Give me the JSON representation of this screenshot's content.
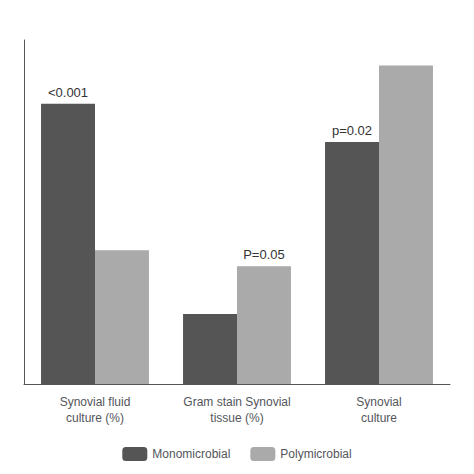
{
  "chart_data": {
    "type": "bar",
    "categories": [
      "Synovial fluid\nculture (%)",
      "Gram stain Synovial\ntissue (%)",
      "Synovial\nculture"
    ],
    "series": [
      {
        "name": "Monomicrobial",
        "color": "#555555",
        "values": [
          88,
          22,
          76
        ]
      },
      {
        "name": "Polymicrobial",
        "color": "#aaaaaa",
        "values": [
          42,
          37,
          100
        ]
      }
    ],
    "annotations": [
      {
        "text": "<0.001",
        "category": "Synovial fluid\nculture (%)",
        "series": "Monomicrobial"
      },
      {
        "text": "P=0.05",
        "category": "Gram stain Synovial\ntissue (%)",
        "series": "Polymicrobial"
      },
      {
        "text": "p=0.02",
        "category": "Synovial\nculture",
        "series": "Monomicrobial"
      }
    ],
    "ylim": [
      0,
      108
    ],
    "grid": false,
    "tick_labels": "x",
    "legend": "bottom"
  }
}
